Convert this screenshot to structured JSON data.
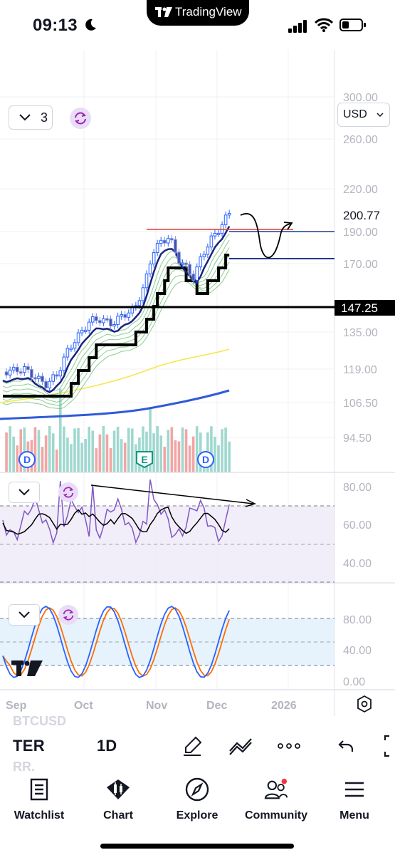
{
  "status_bar": {
    "time": "09:13",
    "brand": "TradingView",
    "icons": [
      "moon-icon",
      "cellular-signal-icon",
      "wifi-icon",
      "battery-icon"
    ]
  },
  "chart": {
    "interval_selector_value": "3",
    "currency": "USD",
    "price_axis": [
      "300.00",
      "260.00",
      "220.00",
      "190.00",
      "170.00",
      "135.00",
      "119.00",
      "106.50",
      "94.50"
    ],
    "last_price_label": "200.77",
    "horizontal_level_label": "147.25",
    "event_markers": [
      "D",
      "E",
      "D"
    ],
    "rsi_axis": [
      "80.00",
      "60.00",
      "40.00"
    ],
    "stoch_axis": [
      "80.00",
      "40.00",
      "0.00"
    ],
    "time_axis": [
      "Sep",
      "Oct",
      "Nov",
      "Dec",
      "2026"
    ],
    "colors": {
      "up": "#26a69a",
      "down": "#ef5350",
      "bull_candle": "#2962ff",
      "ema_fast": "#1a237e",
      "ema_slow_band": "#4caf50",
      "ma_yellow": "#ffeb3b",
      "ma_blue": "#2962ff",
      "rsi_line": "#7e57c2",
      "stoch_k": "#2962ff",
      "stoch_d": "#ff6d00",
      "resistance": "#e53935"
    }
  },
  "toolbar": {
    "symbol": "TER",
    "interval": "1D",
    "ghost_top": "BTCUSD",
    "ghost_bottom": "RR.",
    "tools": [
      "brush-icon",
      "line-tools-icon",
      "more-icon",
      "undo-icon",
      "fullscreen-icon"
    ]
  },
  "tabs": [
    {
      "label": "Watchlist",
      "icon": "watchlist-icon"
    },
    {
      "label": "Chart",
      "icon": "chart-icon"
    },
    {
      "label": "Explore",
      "icon": "compass-icon"
    },
    {
      "label": "Community",
      "icon": "community-icon"
    },
    {
      "label": "Menu",
      "icon": "menu-icon"
    }
  ]
}
